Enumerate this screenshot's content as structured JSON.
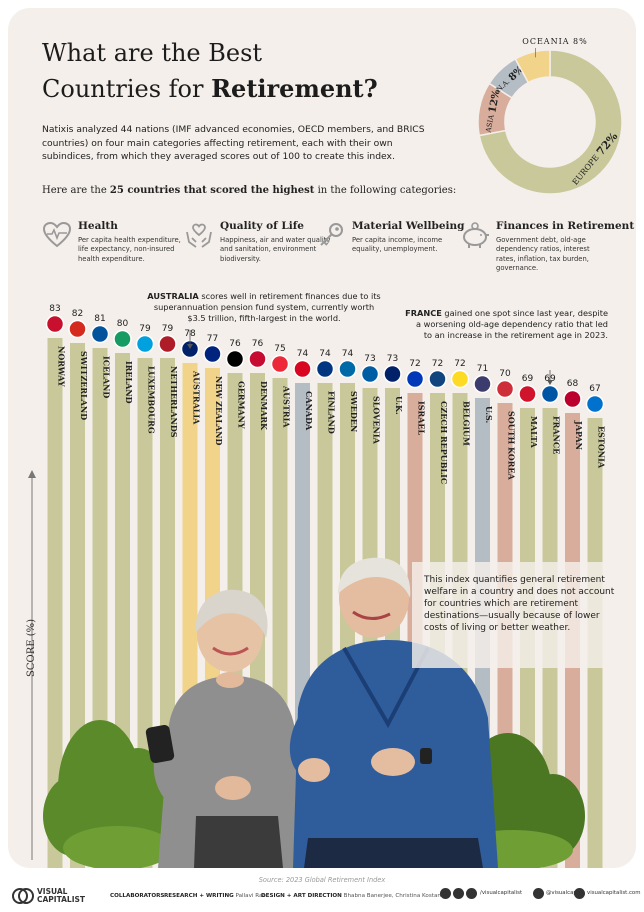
{
  "header": {
    "title_line1": "What are the Best",
    "title_line2_pre": "Countries for ",
    "title_line2_bold": "Retirement?",
    "intro": "Natixis analyzed 44 nations (IMF advanced economies, OECD members, and BRICS countries) on four main categories affecting retirement, each with their own subindices, from which they averaged scores out of 100 to create this index.",
    "lead_pre": "Here are the ",
    "lead_bold": "25 countries that scored the highest",
    "lead_post": " in the following categories:"
  },
  "categories": [
    {
      "title": "Health",
      "desc": "Per capita health expenditure, life expectancy, non-insured health expenditure.",
      "icon": "heart-pulse-icon"
    },
    {
      "title": "Quality of Life",
      "desc": "Happiness, air and water quality and sanitation, environment biodiversity.",
      "icon": "hands-heart-icon"
    },
    {
      "title": "Material Wellbeing",
      "desc": "Per capita income, income equality, unemployment.",
      "icon": "key-icon"
    },
    {
      "title": "Finances in Retirement",
      "desc": "Government debt, old-age dependency ratios, interest rates, inflation, tax burden, governance.",
      "icon": "piggy-bank-icon"
    }
  ],
  "annotations": {
    "australia_bold": "AUSTRALIA",
    "australia_line1": " scores well in retirement finances due to its",
    "australia_line2": "superannuation pension fund system, currently worth",
    "australia_line3": "$3.5 trillion, fifth-largest in the world.",
    "france_bold": "FRANCE",
    "france_line1": " gained one spot since last year, despite",
    "france_line2": "a worsening old-age dependency ratio that led",
    "france_line3": "to an increase in the retirement age in 2023.",
    "note": "This index quantifies general retirement welfare in a country and does not account for countries which are retirement destinations—usually because of lower costs of living or better weather."
  },
  "chart_data": [
    {
      "type": "bar",
      "categories": [
        "NORWAY",
        "SWITZERLAND",
        "ICELAND",
        "IRELAND",
        "LUXEMBOURG",
        "NETHERLANDS",
        "AUSTRALIA",
        "NEW ZEALAND",
        "GERMANY",
        "DENMARK",
        "AUSTRIA",
        "CANADA",
        "FINLAND",
        "SWEDEN",
        "SLOVENIA",
        "U.K.",
        "ISRAEL",
        "CZECH REPUBLIC",
        "BELGIUM",
        "U.S.",
        "SOUTH KOREA",
        "MALTA",
        "FRANCE",
        "JAPAN",
        "ESTONIA"
      ],
      "values": [
        83,
        82,
        81,
        80,
        79,
        79,
        78,
        77,
        76,
        76,
        75,
        74,
        74,
        74,
        73,
        73,
        72,
        72,
        72,
        71,
        70,
        69,
        69,
        68,
        67
      ],
      "regions": [
        "Europe",
        "Europe",
        "Europe",
        "Europe",
        "Europe",
        "Europe",
        "Oceania",
        "Oceania",
        "Europe",
        "Europe",
        "Europe",
        "N.A.",
        "Europe",
        "Europe",
        "Europe",
        "Europe",
        "Asia",
        "Europe",
        "Europe",
        "N.A.",
        "Asia",
        "Europe",
        "Europe",
        "Asia",
        "Europe"
      ],
      "ylabel": "SCORE (%)"
    },
    {
      "type": "pie",
      "categories": [
        "EUROPE",
        "ASIA",
        "N.A.",
        "OCEANIA"
      ],
      "values": [
        72,
        12,
        8,
        8
      ]
    }
  ],
  "colors": {
    "Europe": "#c9c89a",
    "Asia": "#d9ad9c",
    "N.A.": "#b4bcc4",
    "Oceania": "#f1d48a",
    "background": "#f4efea"
  },
  "footer": {
    "source": "Source: 2023 Global Retirement Index",
    "brand_line1": "VISUAL",
    "brand_line2": "CAPITALIST",
    "collaborators": "COLLABORATORS",
    "research_label": "RESEARCH + WRITING",
    "research_name": "Pallavi Rao",
    "design_label": "DESIGN + ART DIRECTION",
    "design_names": "Bhabna Banerjee, Christina Kostandi",
    "social_fb": "/visualcapitalist",
    "social_ig": "@visualcap",
    "social_web": "visualcapitalist.com"
  }
}
